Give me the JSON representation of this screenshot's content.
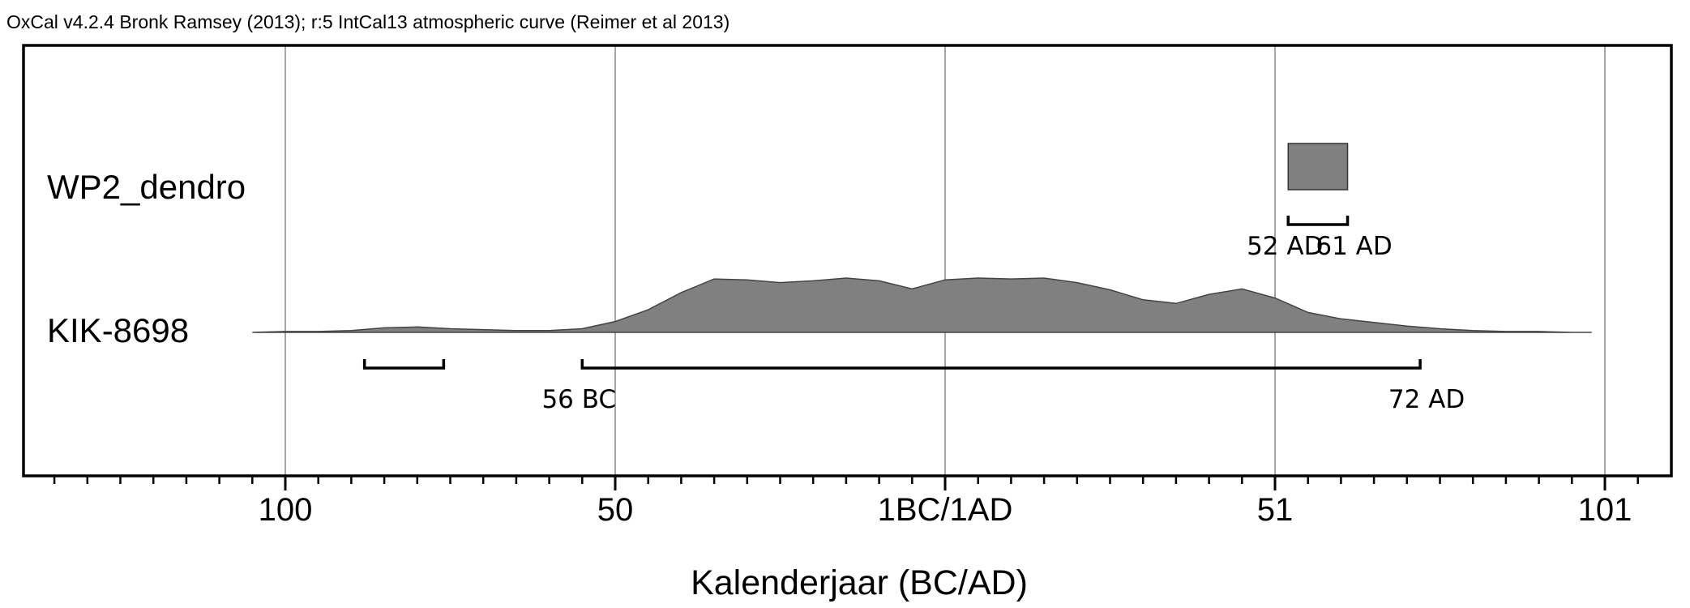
{
  "header": "OxCal v4.2.4 Bronk Ramsey (2013); r:5 IntCal13 atmospheric curve (Reimer et al 2013)",
  "chart_data": {
    "type": "area",
    "x_axis": {
      "label": "Kalenderjaar (BC/AD)",
      "range": [
        -135,
        111
      ],
      "major_ticks": [
        {
          "x": -100,
          "label": "100"
        },
        {
          "x": -50,
          "label": "50"
        },
        {
          "x": 0,
          "label": "1BC/1AD"
        },
        {
          "x": 50,
          "label": "51"
        },
        {
          "x": 100,
          "label": "101"
        }
      ],
      "minor_tick_step": 5,
      "grid": true
    },
    "series": [
      {
        "name": "WP2_dendro",
        "shape": "box",
        "x": [
          52,
          61
        ],
        "ranges": [
          {
            "from": 52,
            "to": 61,
            "label_start": "52 AD",
            "label_end": "61 AD"
          }
        ]
      },
      {
        "name": "KIK-8698",
        "x": [
          -105,
          -100,
          -95,
          -90,
          -85,
          -80,
          -75,
          -70,
          -65,
          -60,
          -55,
          -50,
          -45,
          -40,
          -35,
          -30,
          -25,
          -20,
          -15,
          -10,
          -5,
          0,
          5,
          10,
          15,
          20,
          25,
          30,
          35,
          40,
          45,
          50,
          55,
          60,
          65,
          70,
          75,
          80,
          85,
          90,
          95,
          98
        ],
        "y": [
          0.0,
          0.01,
          0.01,
          0.02,
          0.05,
          0.06,
          0.04,
          0.03,
          0.02,
          0.02,
          0.04,
          0.12,
          0.25,
          0.44,
          0.59,
          0.58,
          0.55,
          0.57,
          0.6,
          0.57,
          0.48,
          0.58,
          0.6,
          0.59,
          0.6,
          0.55,
          0.47,
          0.36,
          0.32,
          0.42,
          0.48,
          0.38,
          0.22,
          0.15,
          0.11,
          0.07,
          0.04,
          0.02,
          0.01,
          0.01,
          0.0,
          0.0
        ],
        "ranges": [
          {
            "from": -88,
            "to": -76,
            "label_start": "",
            "label_end": ""
          },
          {
            "from": -55,
            "to": 72,
            "label_start": "56 BC",
            "label_end": "72 AD"
          }
        ]
      }
    ]
  }
}
